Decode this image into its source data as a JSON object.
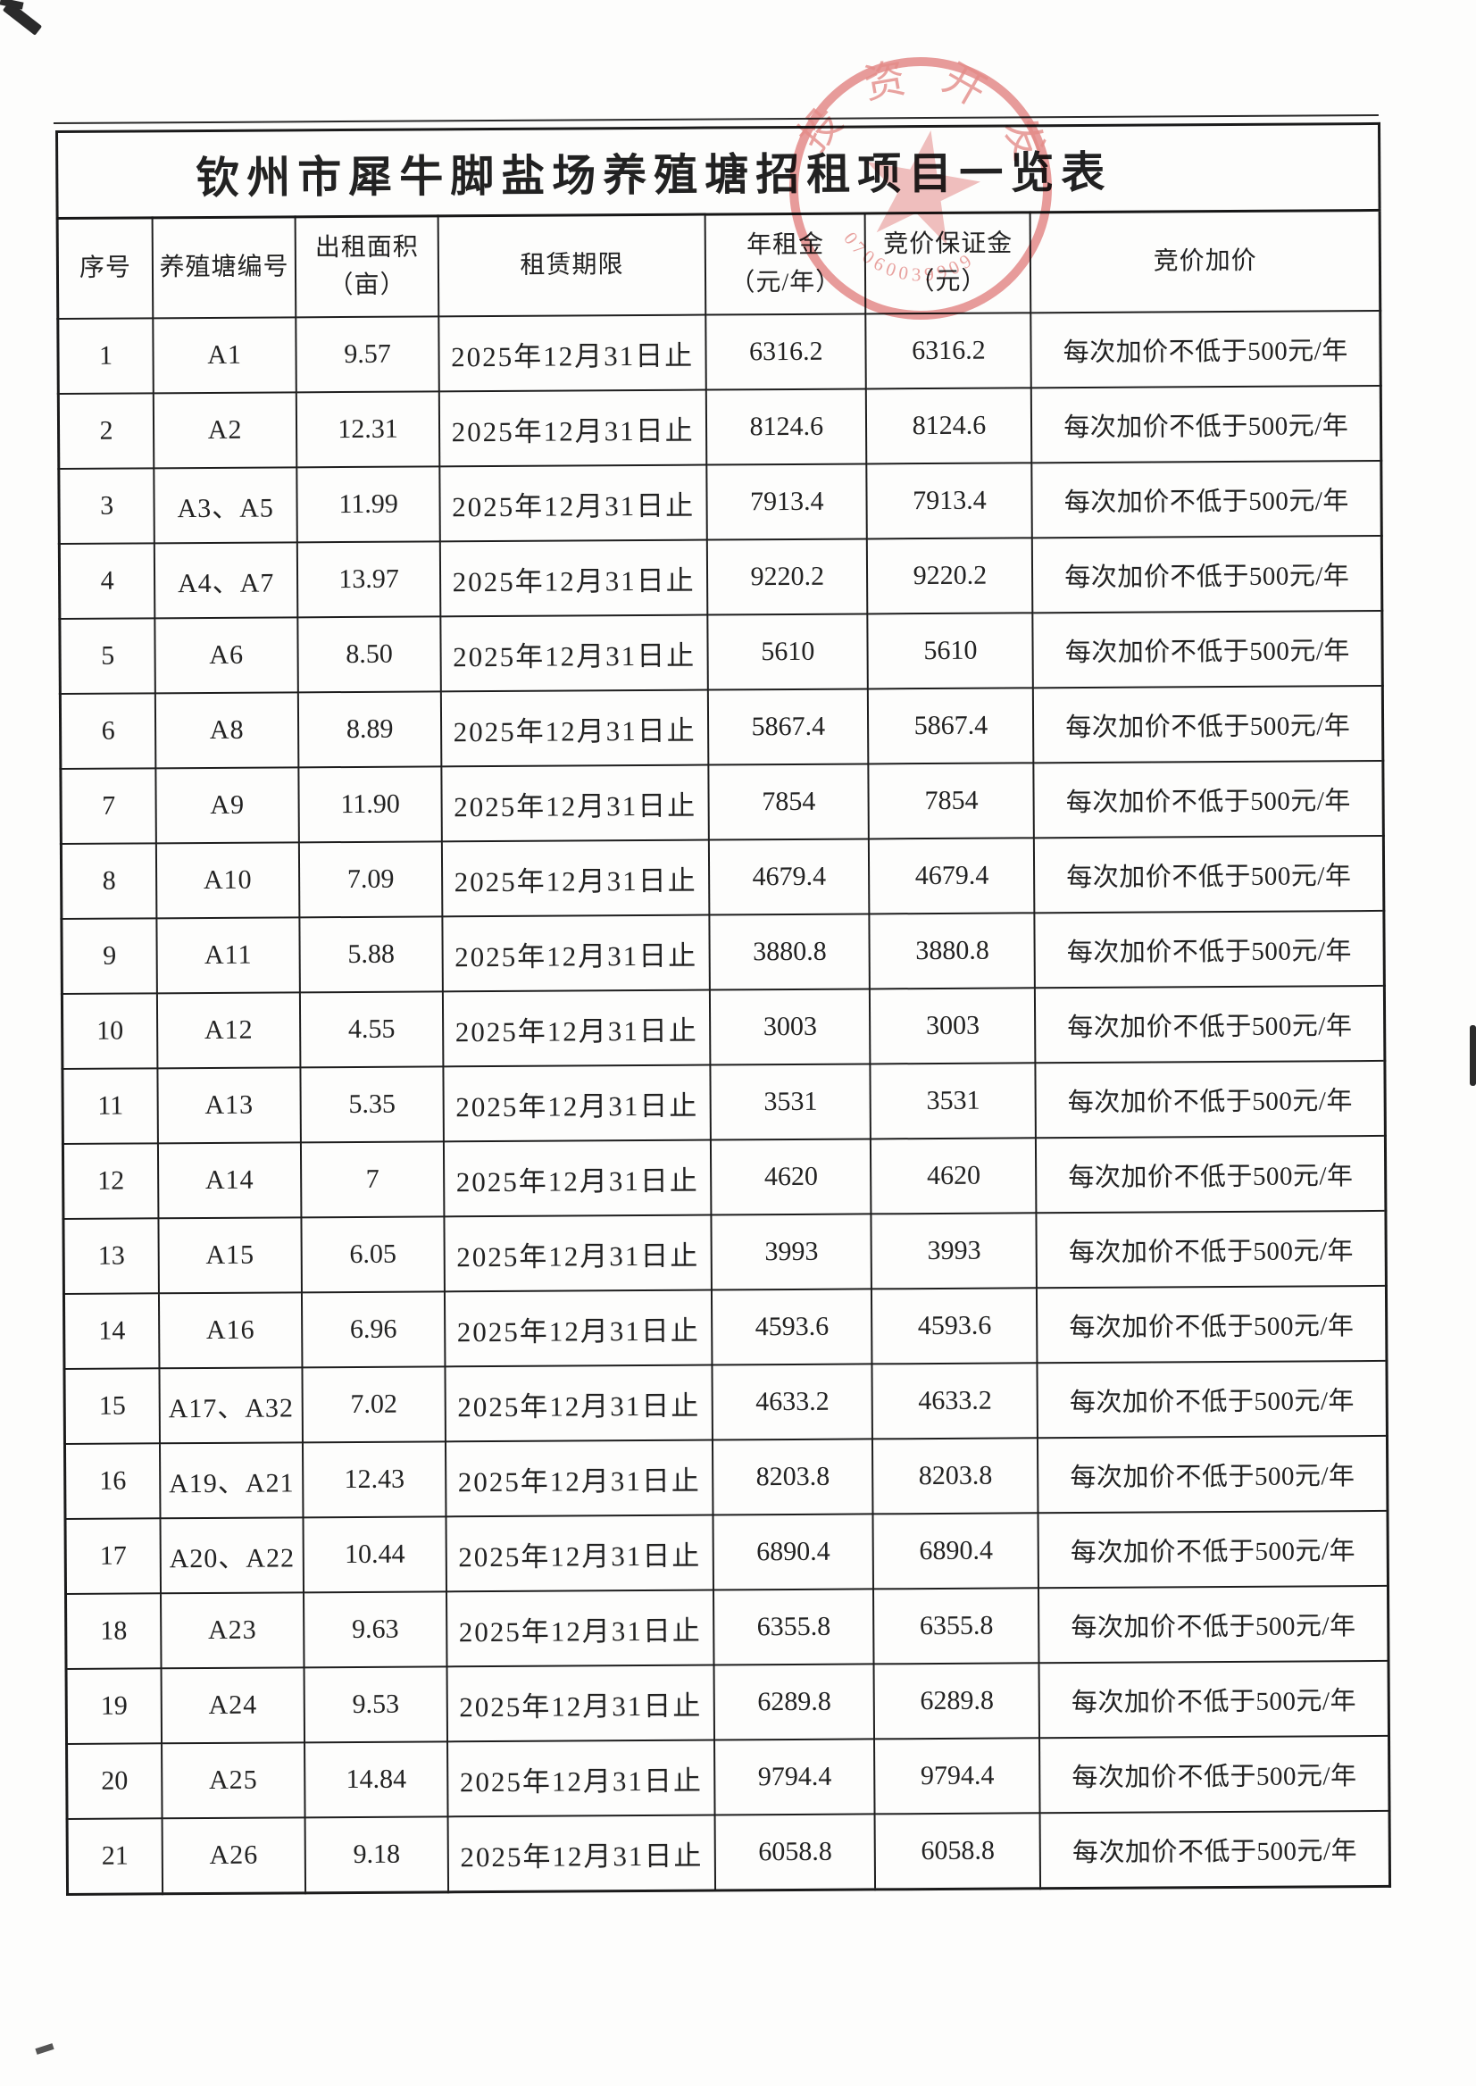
{
  "document": {
    "title": "钦州市犀牛脚盐场养殖塘招租项目一览表"
  },
  "table": {
    "headers": {
      "no": "序号",
      "pond": "养殖塘编号",
      "area": "出租面积\n（亩）",
      "lease": "租赁期限",
      "rent": "年租金\n（元/年）",
      "deposit": "竞价保证金\n（元）",
      "increment": "竞价加价"
    },
    "column_order": [
      "no",
      "pond",
      "area",
      "lease",
      "rent",
      "deposit",
      "increment"
    ],
    "rows": [
      {
        "no": "1",
        "pond": "A1",
        "area": "9.57",
        "lease": "2025年12月31日止",
        "rent": "6316.2",
        "deposit": "6316.2",
        "increment": "每次加价不低于500元/年"
      },
      {
        "no": "2",
        "pond": "A2",
        "area": "12.31",
        "lease": "2025年12月31日止",
        "rent": "8124.6",
        "deposit": "8124.6",
        "increment": "每次加价不低于500元/年"
      },
      {
        "no": "3",
        "pond": "A3、A5",
        "area": "11.99",
        "lease": "2025年12月31日止",
        "rent": "7913.4",
        "deposit": "7913.4",
        "increment": "每次加价不低于500元/年"
      },
      {
        "no": "4",
        "pond": "A4、A7",
        "area": "13.97",
        "lease": "2025年12月31日止",
        "rent": "9220.2",
        "deposit": "9220.2",
        "increment": "每次加价不低于500元/年"
      },
      {
        "no": "5",
        "pond": "A6",
        "area": "8.50",
        "lease": "2025年12月31日止",
        "rent": "5610",
        "deposit": "5610",
        "increment": "每次加价不低于500元/年"
      },
      {
        "no": "6",
        "pond": "A8",
        "area": "8.89",
        "lease": "2025年12月31日止",
        "rent": "5867.4",
        "deposit": "5867.4",
        "increment": "每次加价不低于500元/年"
      },
      {
        "no": "7",
        "pond": "A9",
        "area": "11.90",
        "lease": "2025年12月31日止",
        "rent": "7854",
        "deposit": "7854",
        "increment": "每次加价不低于500元/年"
      },
      {
        "no": "8",
        "pond": "A10",
        "area": "7.09",
        "lease": "2025年12月31日止",
        "rent": "4679.4",
        "deposit": "4679.4",
        "increment": "每次加价不低于500元/年"
      },
      {
        "no": "9",
        "pond": "A11",
        "area": "5.88",
        "lease": "2025年12月31日止",
        "rent": "3880.8",
        "deposit": "3880.8",
        "increment": "每次加价不低于500元/年"
      },
      {
        "no": "10",
        "pond": "A12",
        "area": "4.55",
        "lease": "2025年12月31日止",
        "rent": "3003",
        "deposit": "3003",
        "increment": "每次加价不低于500元/年"
      },
      {
        "no": "11",
        "pond": "A13",
        "area": "5.35",
        "lease": "2025年12月31日止",
        "rent": "3531",
        "deposit": "3531",
        "increment": "每次加价不低于500元/年"
      },
      {
        "no": "12",
        "pond": "A14",
        "area": "7",
        "lease": "2025年12月31日止",
        "rent": "4620",
        "deposit": "4620",
        "increment": "每次加价不低于500元/年"
      },
      {
        "no": "13",
        "pond": "A15",
        "area": "6.05",
        "lease": "2025年12月31日止",
        "rent": "3993",
        "deposit": "3993",
        "increment": "每次加价不低于500元/年"
      },
      {
        "no": "14",
        "pond": "A16",
        "area": "6.96",
        "lease": "2025年12月31日止",
        "rent": "4593.6",
        "deposit": "4593.6",
        "increment": "每次加价不低于500元/年"
      },
      {
        "no": "15",
        "pond": "A17、A32",
        "area": "7.02",
        "lease": "2025年12月31日止",
        "rent": "4633.2",
        "deposit": "4633.2",
        "increment": "每次加价不低于500元/年"
      },
      {
        "no": "16",
        "pond": "A19、A21",
        "area": "12.43",
        "lease": "2025年12月31日止",
        "rent": "8203.8",
        "deposit": "8203.8",
        "increment": "每次加价不低于500元/年"
      },
      {
        "no": "17",
        "pond": "A20、A22",
        "area": "10.44",
        "lease": "2025年12月31日止",
        "rent": "6890.4",
        "deposit": "6890.4",
        "increment": "每次加价不低于500元/年"
      },
      {
        "no": "18",
        "pond": "A23",
        "area": "9.63",
        "lease": "2025年12月31日止",
        "rent": "6355.8",
        "deposit": "6355.8",
        "increment": "每次加价不低于500元/年"
      },
      {
        "no": "19",
        "pond": "A24",
        "area": "9.53",
        "lease": "2025年12月31日止",
        "rent": "6289.8",
        "deposit": "6289.8",
        "increment": "每次加价不低于500元/年"
      },
      {
        "no": "20",
        "pond": "A25",
        "area": "14.84",
        "lease": "2025年12月31日止",
        "rent": "9794.4",
        "deposit": "9794.4",
        "increment": "每次加价不低于500元/年"
      },
      {
        "no": "21",
        "pond": "A26",
        "area": "9.18",
        "lease": "2025年12月31日止",
        "rent": "6058.8",
        "deposit": "6058.8",
        "increment": "每次加价不低于500元/年"
      }
    ]
  },
  "seal": {
    "arc_text_top": "投资开发",
    "arc_digits_bottom": "07060039909",
    "color": "#dd6a68"
  }
}
